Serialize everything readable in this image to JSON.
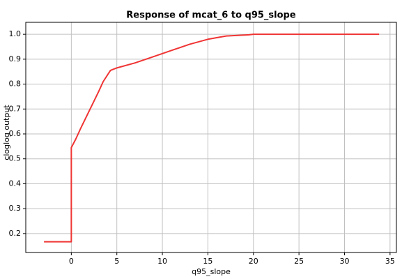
{
  "chart_data": {
    "type": "line",
    "title": "Response of mcat_6 to q95_slope",
    "x_label": "q95_slope",
    "y_label": "cloglog output",
    "x": [
      -3,
      0,
      0,
      0.5,
      1,
      2,
      3,
      3.5,
      4.3,
      5,
      7,
      9,
      11,
      13,
      15,
      17,
      19.5,
      20,
      33.8
    ],
    "values": [
      0.167,
      0.167,
      0.545,
      0.58,
      0.62,
      0.695,
      0.77,
      0.81,
      0.855,
      0.865,
      0.885,
      0.91,
      0.935,
      0.96,
      0.98,
      0.993,
      0.998,
      1.0,
      1.0
    ],
    "color": "#f03434",
    "xlim": [
      -5,
      35.7
    ],
    "ylim": [
      0.124,
      1.048
    ],
    "xticks": [
      0,
      5,
      10,
      15,
      20,
      25,
      30,
      35
    ],
    "yticks": [
      0.2,
      0.3,
      0.4,
      0.5,
      0.6,
      0.7,
      0.8,
      0.9,
      {
        "value": 1,
        "label": "1.0"
      }
    ],
    "grid": true
  }
}
